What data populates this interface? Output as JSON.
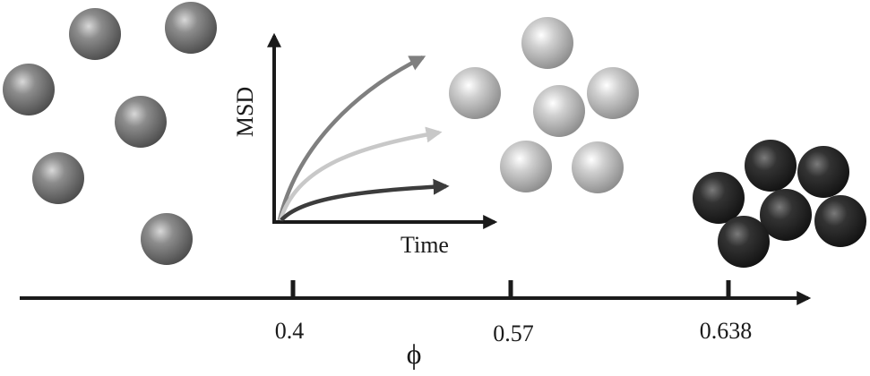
{
  "inset": {
    "y_axis_label": "MSD",
    "x_axis_label": "Time",
    "curves": [
      {
        "key": "dilute",
        "color": "#7f7f7f"
      },
      {
        "key": "glassy",
        "color": "#c8c8c8"
      },
      {
        "key": "jammed",
        "color": "#3c3c3c"
      }
    ]
  },
  "phi_axis": {
    "symbol": "ϕ",
    "ticks": [
      "0.4",
      "0.57",
      "0.638"
    ]
  },
  "colors": {
    "axis": "#1a1a1a",
    "dilute_particles": "#7a7a7a",
    "glassy_particles": "#cfcfcf",
    "jammed_particles": "#2e2e2e"
  }
}
